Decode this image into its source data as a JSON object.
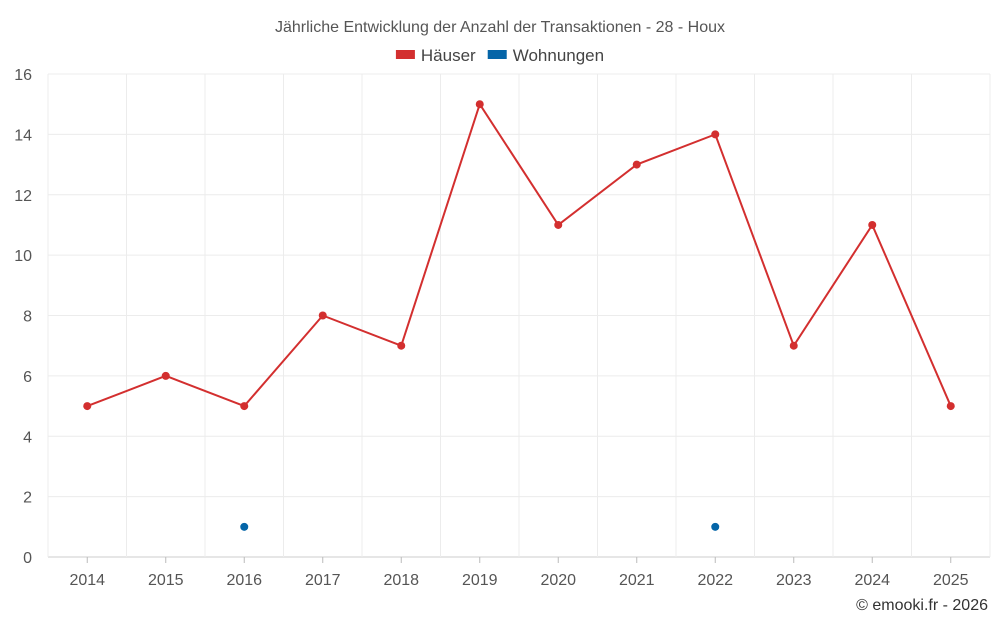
{
  "chart_data": {
    "type": "line",
    "title": "Jährliche Entwicklung der Anzahl der Transaktionen - 28 - Houx",
    "categories": [
      "2014",
      "2015",
      "2016",
      "2017",
      "2018",
      "2019",
      "2020",
      "2021",
      "2022",
      "2023",
      "2024",
      "2025"
    ],
    "series": [
      {
        "name": "Häuser",
        "color": "#d32f2f",
        "values": [
          5,
          6,
          5,
          8,
          7,
          15,
          11,
          13,
          14,
          7,
          11,
          5
        ]
      },
      {
        "name": "Wohnungen",
        "color": "#0565a8",
        "values": [
          null,
          null,
          1,
          null,
          null,
          null,
          null,
          null,
          1,
          null,
          null,
          null
        ]
      }
    ],
    "ylim": [
      0,
      16
    ],
    "yticks": [
      0,
      2,
      4,
      6,
      8,
      10,
      12,
      14,
      16
    ],
    "grid": true,
    "legend_position": "top-center"
  },
  "credit": "© emooki.fr - 2026"
}
